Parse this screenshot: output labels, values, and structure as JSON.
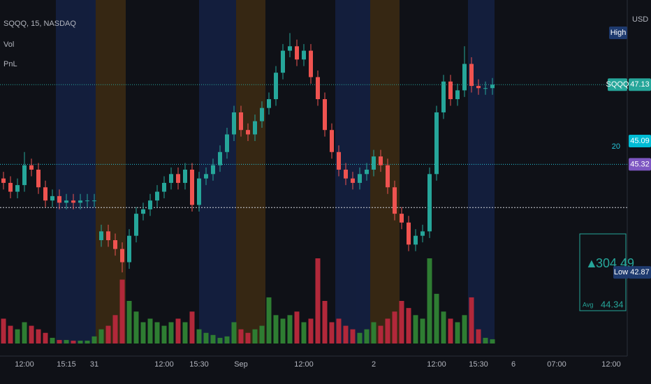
{
  "chart_data": {
    "type": "candlestick",
    "legend": [
      "SQQQ, 15, NASDAQ",
      "Vol",
      "PnL"
    ],
    "currency": "USD",
    "up_color": "#26a69a",
    "down_color": "#ef5350",
    "volume_up_color": "#2e7d32",
    "volume_down_color": "#b2283a",
    "ylim": [
      40.97,
      49.05
    ],
    "categories": [
      null,
      null,
      null,
      "12:00",
      null,
      null,
      null,
      null,
      null,
      "15:15",
      null,
      null,
      null,
      "31",
      null,
      null,
      null,
      null,
      null,
      null,
      null,
      null,
      null,
      "12:00",
      null,
      null,
      null,
      null,
      "15:30",
      null,
      null,
      null,
      null,
      null,
      "Sep",
      null,
      null,
      null,
      null,
      null,
      null,
      null,
      null,
      "12:00",
      null,
      null,
      null,
      null,
      null,
      null,
      null,
      null,
      null,
      "2",
      null,
      null,
      null,
      null,
      null,
      null,
      null,
      null,
      "12:00",
      null,
      null,
      null,
      null,
      null,
      "15:30",
      null,
      null
    ],
    "future_labels": [
      "6",
      "07:00",
      "12:00"
    ],
    "open": [
      45.0,
      44.9,
      44.7,
      44.85,
      45.3,
      45.2,
      44.8,
      44.5,
      44.6,
      44.45,
      44.5,
      44.45,
      44.5,
      44.5,
      43.6,
      43.8,
      43.6,
      43.4,
      43.1,
      43.7,
      44.2,
      44.3,
      44.5,
      44.7,
      44.9,
      45.1,
      44.9,
      45.2,
      44.4,
      45.0,
      45.1,
      45.3,
      45.6,
      46.0,
      46.5,
      46.1,
      46.0,
      46.3,
      46.6,
      46.8,
      47.4,
      47.9,
      48.0,
      47.7,
      47.9,
      47.3,
      46.8,
      46.1,
      45.6,
      45.2,
      45.0,
      44.9,
      45.1,
      45.2,
      45.5,
      45.3,
      44.8,
      44.2,
      44.0,
      43.5,
      43.7,
      43.8,
      45.1,
      46.5,
      47.2,
      46.8,
      47.0,
      47.6,
      47.1,
      47.05,
      47.05
    ],
    "high": [
      45.15,
      45.05,
      45.0,
      45.6,
      45.45,
      45.35,
      44.95,
      44.75,
      44.75,
      44.65,
      44.65,
      44.65,
      44.65,
      44.65,
      43.95,
      43.95,
      43.75,
      43.55,
      43.85,
      44.35,
      44.45,
      44.65,
      44.85,
      45.05,
      45.25,
      45.25,
      45.35,
      45.35,
      45.15,
      45.25,
      45.45,
      45.75,
      46.15,
      46.65,
      46.65,
      46.25,
      46.45,
      46.75,
      46.95,
      47.55,
      48.05,
      48.3,
      48.15,
      48.05,
      48.05,
      47.45,
      46.95,
      46.25,
      45.75,
      45.35,
      45.15,
      45.25,
      45.35,
      45.65,
      45.65,
      45.45,
      44.95,
      44.35,
      44.15,
      43.85,
      43.95,
      45.25,
      46.65,
      47.35,
      47.35,
      47.15,
      48.0,
      47.75,
      47.25,
      47.2,
      47.28
    ],
    "low": [
      44.75,
      44.55,
      44.55,
      44.7,
      45.05,
      44.65,
      44.35,
      44.35,
      44.3,
      44.3,
      44.3,
      44.3,
      44.35,
      44.35,
      43.45,
      43.45,
      43.25,
      42.87,
      42.95,
      43.55,
      44.05,
      44.15,
      44.35,
      44.55,
      44.75,
      44.75,
      44.75,
      44.25,
      44.25,
      44.85,
      44.95,
      45.15,
      45.45,
      45.85,
      45.95,
      45.85,
      45.85,
      46.15,
      46.45,
      46.65,
      47.25,
      47.75,
      47.55,
      47.55,
      47.15,
      46.65,
      45.95,
      45.45,
      45.05,
      44.85,
      44.75,
      44.75,
      44.95,
      45.05,
      45.15,
      44.65,
      44.05,
      43.85,
      43.35,
      43.35,
      43.55,
      43.65,
      44.95,
      46.35,
      46.65,
      46.65,
      46.85,
      46.95,
      46.9,
      46.9,
      46.9
    ],
    "close": [
      44.9,
      44.7,
      44.85,
      45.3,
      45.2,
      44.8,
      44.5,
      44.6,
      44.45,
      44.5,
      44.45,
      44.5,
      44.5,
      44.5,
      43.8,
      43.6,
      43.4,
      43.1,
      43.7,
      44.2,
      44.3,
      44.5,
      44.7,
      44.9,
      45.1,
      44.9,
      45.2,
      44.4,
      45.0,
      45.1,
      45.3,
      45.6,
      46.0,
      46.5,
      46.1,
      46.0,
      46.3,
      46.6,
      46.8,
      47.4,
      47.9,
      48.0,
      47.7,
      47.9,
      47.3,
      46.8,
      46.1,
      45.6,
      45.2,
      45.0,
      44.9,
      45.1,
      45.2,
      45.5,
      45.3,
      44.8,
      44.2,
      44.0,
      43.5,
      43.7,
      43.8,
      45.1,
      46.5,
      47.2,
      46.8,
      47.0,
      47.6,
      47.1,
      47.05,
      47.05,
      47.13
    ],
    "volume": [
      35,
      25,
      20,
      30,
      25,
      20,
      15,
      8,
      5,
      5,
      4,
      4,
      4,
      10,
      20,
      25,
      40,
      90,
      60,
      45,
      30,
      35,
      30,
      25,
      30,
      35,
      30,
      45,
      20,
      15,
      12,
      8,
      10,
      30,
      20,
      15,
      20,
      25,
      65,
      40,
      35,
      40,
      45,
      30,
      35,
      120,
      60,
      30,
      35,
      25,
      20,
      15,
      20,
      30,
      25,
      35,
      45,
      60,
      50,
      40,
      35,
      120,
      70,
      45,
      35,
      30,
      40,
      65,
      20,
      8,
      6
    ],
    "high_label": "High",
    "symbol_tag": "SQQQ",
    "last_price": 47.13,
    "indicator_value": 20,
    "indicator_price": 45.09,
    "avg_entry": 45.32,
    "low_label": "Low",
    "low_price": 42.87,
    "pnl_arrow": "▲",
    "pnl": 304.49,
    "avg_label": "Avg",
    "avg": 44.34
  }
}
